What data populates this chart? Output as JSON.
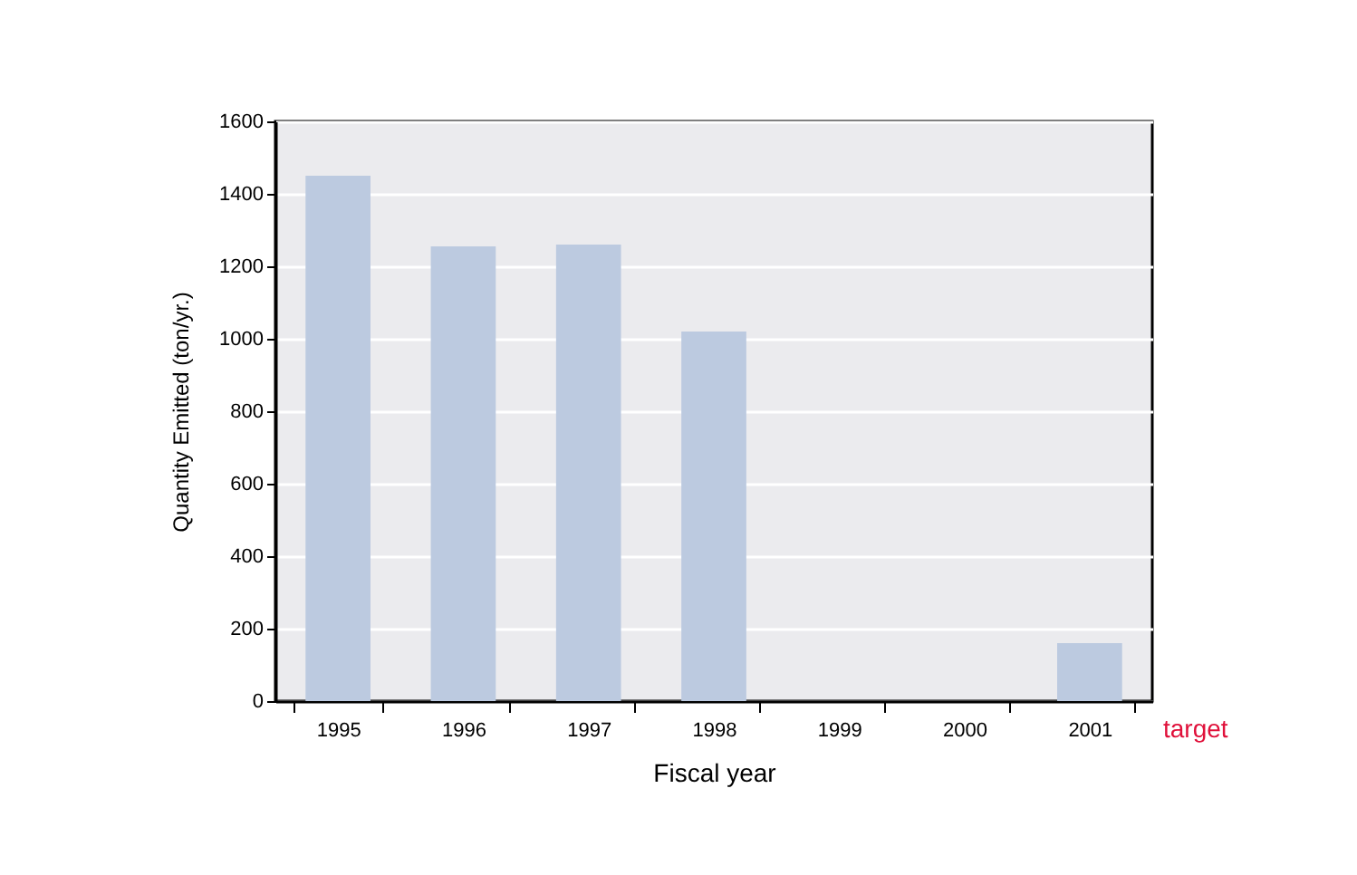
{
  "chart_data": {
    "type": "bar",
    "xlabel": "Fiscal year",
    "ylabel": "Quantity Emitted (ton/yr.)",
    "categories": [
      "1995",
      "1996",
      "1997",
      "1998",
      "1999",
      "2000",
      "2001"
    ],
    "values": [
      1450,
      1255,
      1260,
      1020,
      null,
      null,
      160
    ],
    "color": "#bccae0",
    "ylim": [
      0,
      1600
    ],
    "yticks": [
      0,
      200,
      400,
      600,
      800,
      1000,
      1200,
      1400,
      1600
    ],
    "grid": "y",
    "annotations": [
      "target"
    ]
  }
}
